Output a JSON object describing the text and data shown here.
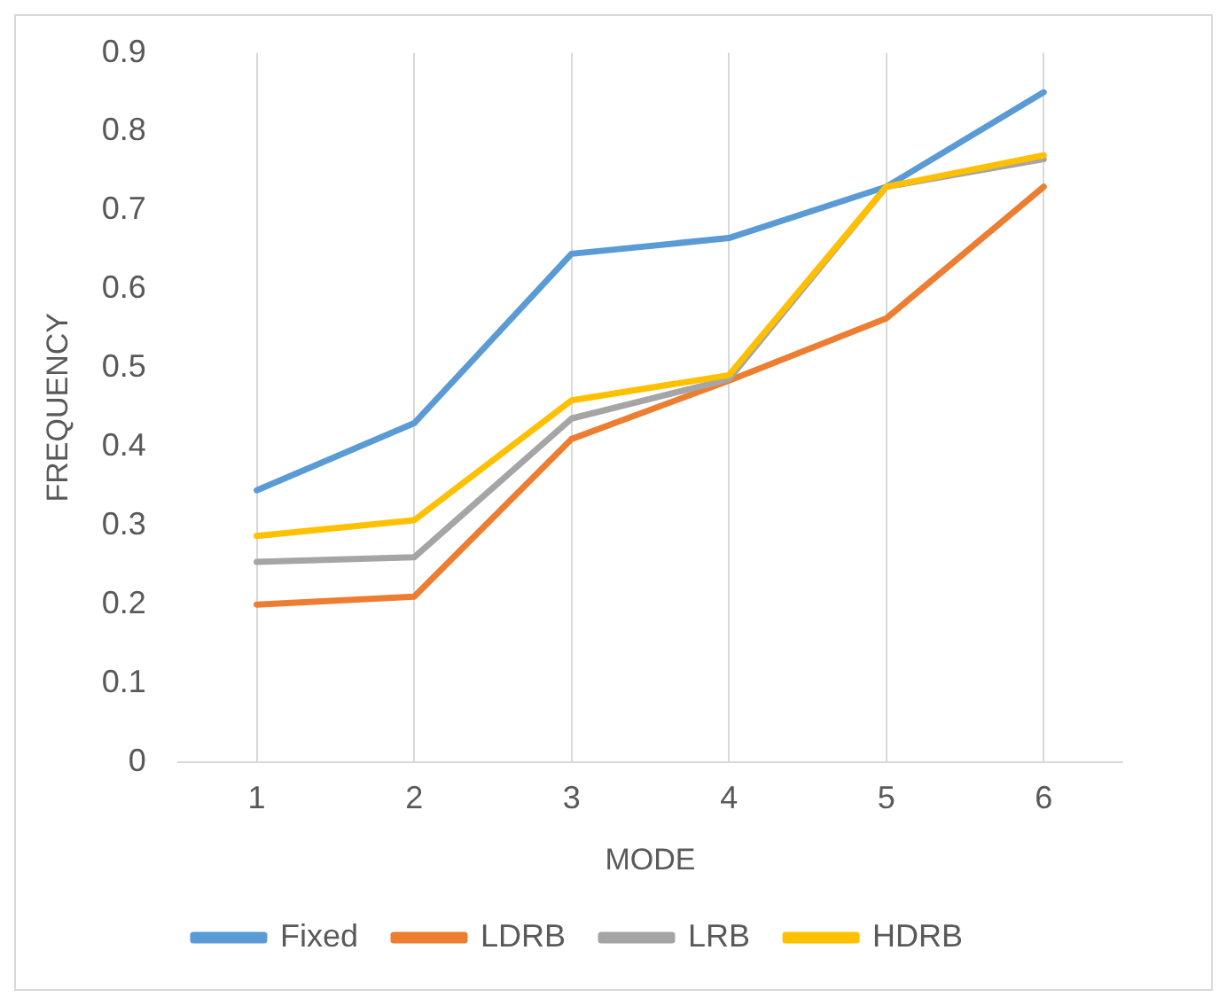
{
  "chart_data": {
    "type": "line",
    "xlabel": "MODE",
    "ylabel": "FREQUENCY",
    "categories": [
      "1",
      "2",
      "3",
      "4",
      "5",
      "6"
    ],
    "series": [
      {
        "name": "Fixed",
        "color": "#5b9bd5",
        "values": [
          0.345,
          0.43,
          0.645,
          0.665,
          0.73,
          0.85
        ]
      },
      {
        "name": "LDRB",
        "color": "#ed7d31",
        "values": [
          0.2,
          0.21,
          0.41,
          0.484,
          0.563,
          0.73
        ]
      },
      {
        "name": "LRB",
        "color": "#a5a5a5",
        "values": [
          0.254,
          0.26,
          0.436,
          0.486,
          0.73,
          0.765
        ]
      },
      {
        "name": "HDRB",
        "color": "#ffc000",
        "values": [
          0.287,
          0.307,
          0.459,
          0.491,
          0.73,
          0.77
        ]
      }
    ],
    "ylim": [
      0,
      0.9
    ],
    "yticks": [
      0,
      0.1,
      0.2,
      0.3,
      0.4,
      0.5,
      0.6,
      0.7,
      0.8,
      0.9
    ],
    "grid": "x",
    "legend": "bottom",
    "marker": "none",
    "line_style": "solid"
  }
}
